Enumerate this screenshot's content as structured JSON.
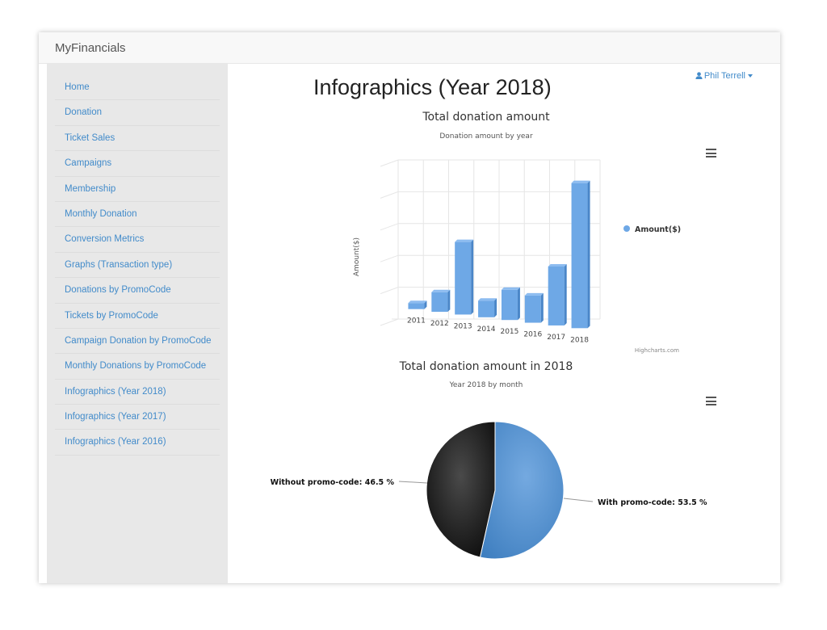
{
  "app": {
    "name": "MyFinancials"
  },
  "user": {
    "name": "Phil Terrell"
  },
  "sidebar": {
    "items": [
      {
        "label": "Home"
      },
      {
        "label": "Donation"
      },
      {
        "label": "Ticket Sales"
      },
      {
        "label": "Campaigns"
      },
      {
        "label": "Membership"
      },
      {
        "label": "Monthly Donation"
      },
      {
        "label": "Conversion Metrics"
      },
      {
        "label": "Graphs (Transaction type)"
      },
      {
        "label": "Donations by PromoCode"
      },
      {
        "label": "Tickets by PromoCode"
      },
      {
        "label": "Campaign Donation by PromoCode"
      },
      {
        "label": "Monthly Donations by PromoCode"
      },
      {
        "label": "Infographics (Year 2018)"
      },
      {
        "label": "Infographics (Year 2017)"
      },
      {
        "label": "Infographics (Year 2016)"
      }
    ]
  },
  "main": {
    "title": "Infographics (Year 2018)"
  },
  "credits": "Highcharts.com",
  "colors": {
    "bar": "#6ea8e6",
    "bar_side": "#4a86c8",
    "link": "#428bca",
    "pie_dark": "#1c1c1c",
    "pie_blue": "#4a8fcf"
  },
  "chart_data": [
    {
      "type": "bar",
      "title": "Total donation amount",
      "subtitle": "Donation amount by year",
      "ylabel": "Amount($)",
      "xlabel": "",
      "categories": [
        "2011",
        "2012",
        "2013",
        "2014",
        "2015",
        "2016",
        "2017",
        "2018"
      ],
      "series": [
        {
          "name": "Amount($)",
          "values": [
            2,
            6.5,
            24,
            5.5,
            10,
            9,
            19.5,
            48
          ]
        }
      ],
      "ylim": [
        0,
        50
      ],
      "grid": true,
      "legend": "right"
    },
    {
      "type": "pie",
      "title": "Total donation amount in 2018",
      "subtitle": "Year 2018 by month",
      "slices": [
        {
          "label": "With promo-code: 53.5 %",
          "value": 53.5
        },
        {
          "label": "Without promo-code: 46.5 %",
          "value": 46.5
        }
      ]
    }
  ]
}
